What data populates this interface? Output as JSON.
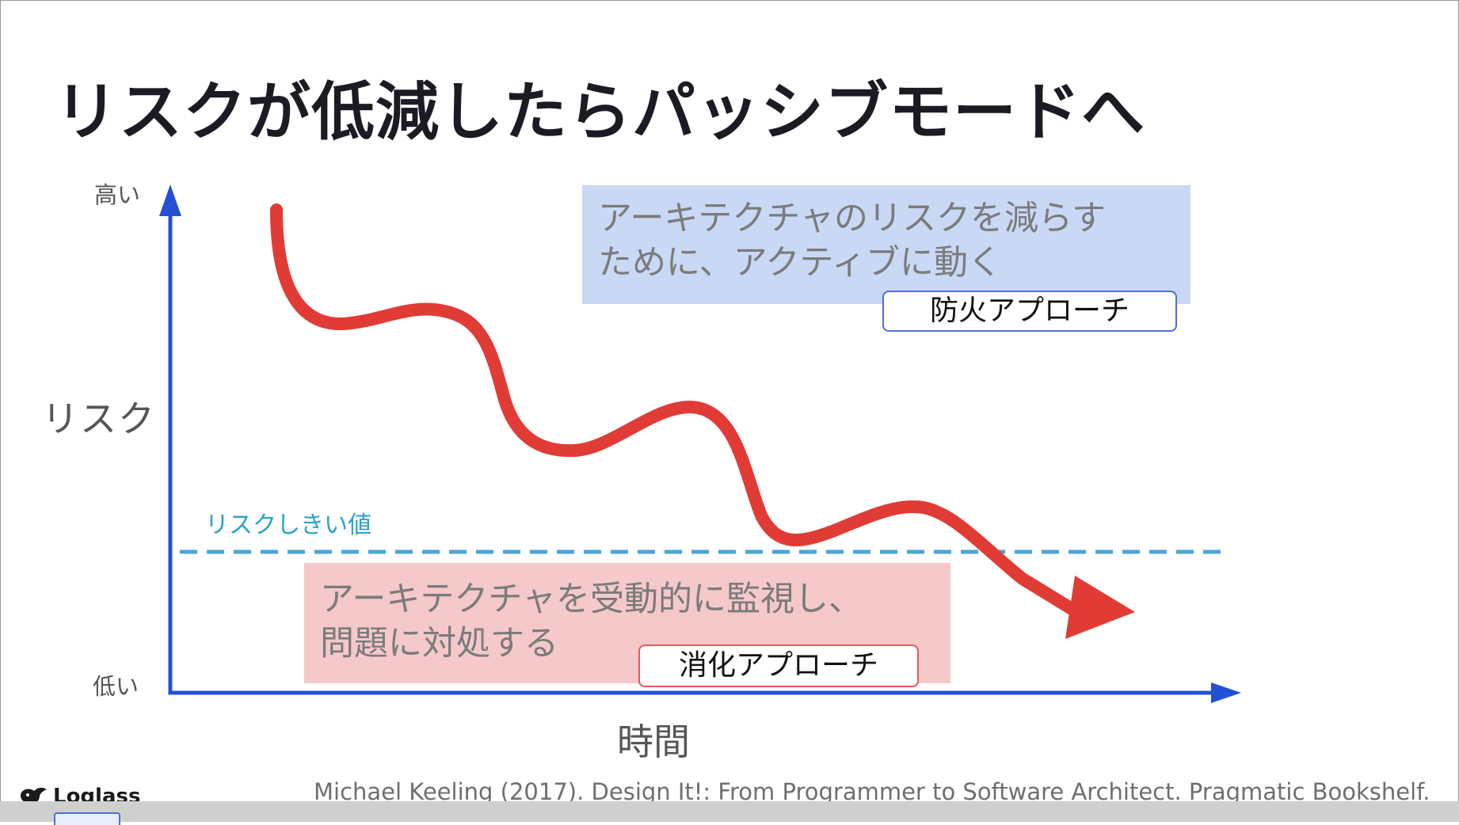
{
  "slide": {
    "title": "リスクが低減したらパッシブモードへ",
    "y_axis": {
      "label": "リスク",
      "high_label": "高い",
      "low_label": "低い"
    },
    "x_axis": {
      "label": "時間"
    },
    "threshold": {
      "label": "リスクしきい値"
    },
    "active_box": {
      "text": "アーキテクチャのリスクを減らす\nために、アクティブに動く",
      "tag": "防火アプローチ"
    },
    "passive_box": {
      "text": "アーキテクチャを受動的に監視し、\n問題に対処する",
      "tag": "消化アプローチ"
    },
    "logo_text": "Loglass",
    "citation": "Michael Keeling (2017). Design It!: From Programmer to Software Architect. Pragmatic Bookshelf."
  },
  "colors": {
    "axis": "#2450d6",
    "risk_curve": "#e03c35",
    "threshold_line": "#4aa6d6",
    "threshold_text": "#2aa3c7",
    "active_box_bg": "#c9d8f5",
    "passive_box_bg": "#f5c9c9"
  }
}
